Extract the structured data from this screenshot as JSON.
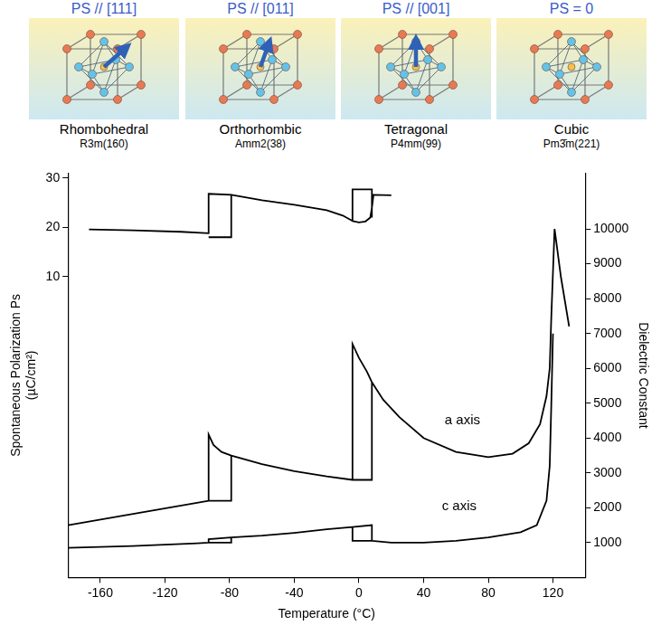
{
  "structures": [
    {
      "polarization": "PS // [111]",
      "name": "Rhombohedral",
      "space_group": "R3m(160)"
    },
    {
      "polarization": "PS // [011]",
      "name": "Orthorhombic",
      "space_group": "Amm2(38)"
    },
    {
      "polarization": "PS // [001]",
      "name": "Tetragonal",
      "space_group": "P4mm(99)"
    },
    {
      "polarization": "PS = 0",
      "name": "Cubic",
      "space_group": "Pm3̄m(221)"
    }
  ],
  "chart_data": {
    "type": "line",
    "xlabel": "Temperature (°C)",
    "ylabel": [
      "Spontaneous Polarization Ps",
      "(µC/cm²)"
    ],
    "y2label": "Dielectric Constant",
    "xlim": [
      -180,
      140
    ],
    "xticks": [
      -160,
      -120,
      -80,
      -40,
      0,
      40,
      80,
      120
    ],
    "ylim": [
      -51,
      31
    ],
    "yticks": [
      10,
      20,
      30
    ],
    "y2lim": [
      0,
      11600
    ],
    "y2ticks": [
      1000,
      2000,
      3000,
      4000,
      5000,
      6000,
      7000,
      8000,
      9000,
      10000
    ],
    "grid": false,
    "series": [
      {
        "color": "#000000",
        "axis": "y",
        "x": [
          -167,
          -140,
          -110,
          -93,
          -93,
          -79,
          -79,
          -93,
          null,
          -79,
          -60,
          -40,
          -20,
          -10,
          -4,
          -4,
          8,
          8,
          null,
          -4,
          0,
          4,
          7,
          8,
          9,
          20
        ],
        "values": [
          19.6,
          19.4,
          19.1,
          18.8,
          26.8,
          26.6,
          18.0,
          18.0,
          null,
          26.6,
          25.5,
          24.6,
          23.5,
          22.4,
          21.3,
          27.7,
          27.7,
          22.0,
          null,
          21.3,
          21.0,
          21.2,
          22.0,
          24.0,
          26.6,
          26.5
        ]
      },
      {
        "color": "#000000",
        "axis": "y2",
        "x": [
          -180,
          -93,
          -79,
          -79,
          null,
          -93,
          -93,
          -90,
          -85,
          -79,
          -60,
          -40,
          -20,
          -4,
          8,
          8,
          null,
          -4,
          -4,
          0,
          5,
          8,
          15,
          25,
          40,
          60,
          80,
          95,
          105,
          112,
          116,
          118,
          119,
          121,
          125,
          130
        ],
        "values": [
          1500,
          2200,
          2200,
          3500,
          null,
          2200,
          4100,
          3800,
          3600,
          3500,
          3250,
          3050,
          2900,
          2800,
          2800,
          5600,
          null,
          2800,
          6700,
          6300,
          5900,
          5600,
          5100,
          4600,
          4000,
          3600,
          3450,
          3550,
          3850,
          4400,
          5200,
          6000,
          7500,
          10000,
          8600,
          7200
        ]
      },
      {
        "color": "#000000",
        "axis": "y2",
        "x": [
          -180,
          -140,
          -100,
          -93,
          -79,
          -79,
          null,
          -93,
          -93,
          -79,
          -60,
          -40,
          -20,
          -4,
          8,
          8,
          -4,
          -4,
          null,
          8,
          20,
          40,
          60,
          80,
          100,
          110,
          116,
          118,
          119,
          120
        ],
        "values": [
          850,
          900,
          980,
          1000,
          1000,
          1150,
          null,
          1000,
          1100,
          1150,
          1200,
          1280,
          1380,
          1450,
          1500,
          1050,
          1050,
          1450,
          null,
          1050,
          1000,
          1000,
          1050,
          1150,
          1300,
          1500,
          2200,
          3200,
          5000,
          7000
        ]
      }
    ],
    "annotations": [
      {
        "text": "a axis",
        "x": 64,
        "y": 4500,
        "axis": "y2"
      },
      {
        "text": "c axis",
        "x": 62,
        "y": 2050,
        "axis": "y2"
      }
    ]
  }
}
